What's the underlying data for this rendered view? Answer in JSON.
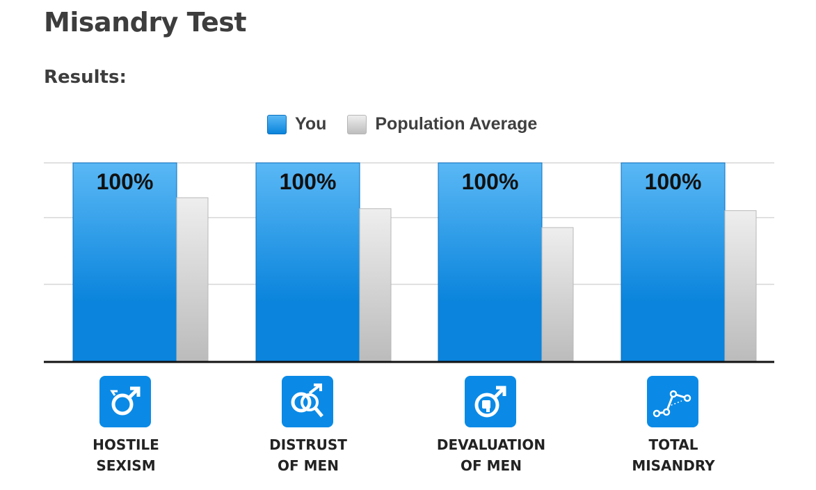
{
  "page": {
    "title": "Misandry Test",
    "results_heading": "Results:"
  },
  "legend": {
    "you_label": "You",
    "avg_label": "Population Average"
  },
  "colors": {
    "you_top": "#5ab8f5",
    "you_bottom": "#0a84dc",
    "avg_top": "#eeeeee",
    "avg_bottom": "#bdbdbd",
    "icon_bg": "#0a8ae6"
  },
  "chart_data": {
    "type": "bar",
    "categories": [
      "HOSTILE\nSEXISM",
      "DISTRUST\nOF MEN",
      "DEVALUATION\nOF MEN",
      "TOTAL\nMISANDRY"
    ],
    "icons": [
      "male-symbol-icon",
      "male-symbol-magnifier-icon",
      "male-symbol-thumbs-down-icon",
      "line-graph-icon"
    ],
    "series": [
      {
        "name": "You",
        "values": [
          100,
          100,
          100,
          100
        ],
        "data_labels": [
          "100%",
          "100%",
          "100%",
          "100%"
        ]
      },
      {
        "name": "Population Average",
        "values": [
          82.5,
          77,
          67.5,
          76
        ]
      }
    ],
    "ylim": [
      0,
      100
    ],
    "grid": true,
    "legend_position": "top-center",
    "title": "",
    "xlabel": "",
    "ylabel": ""
  }
}
